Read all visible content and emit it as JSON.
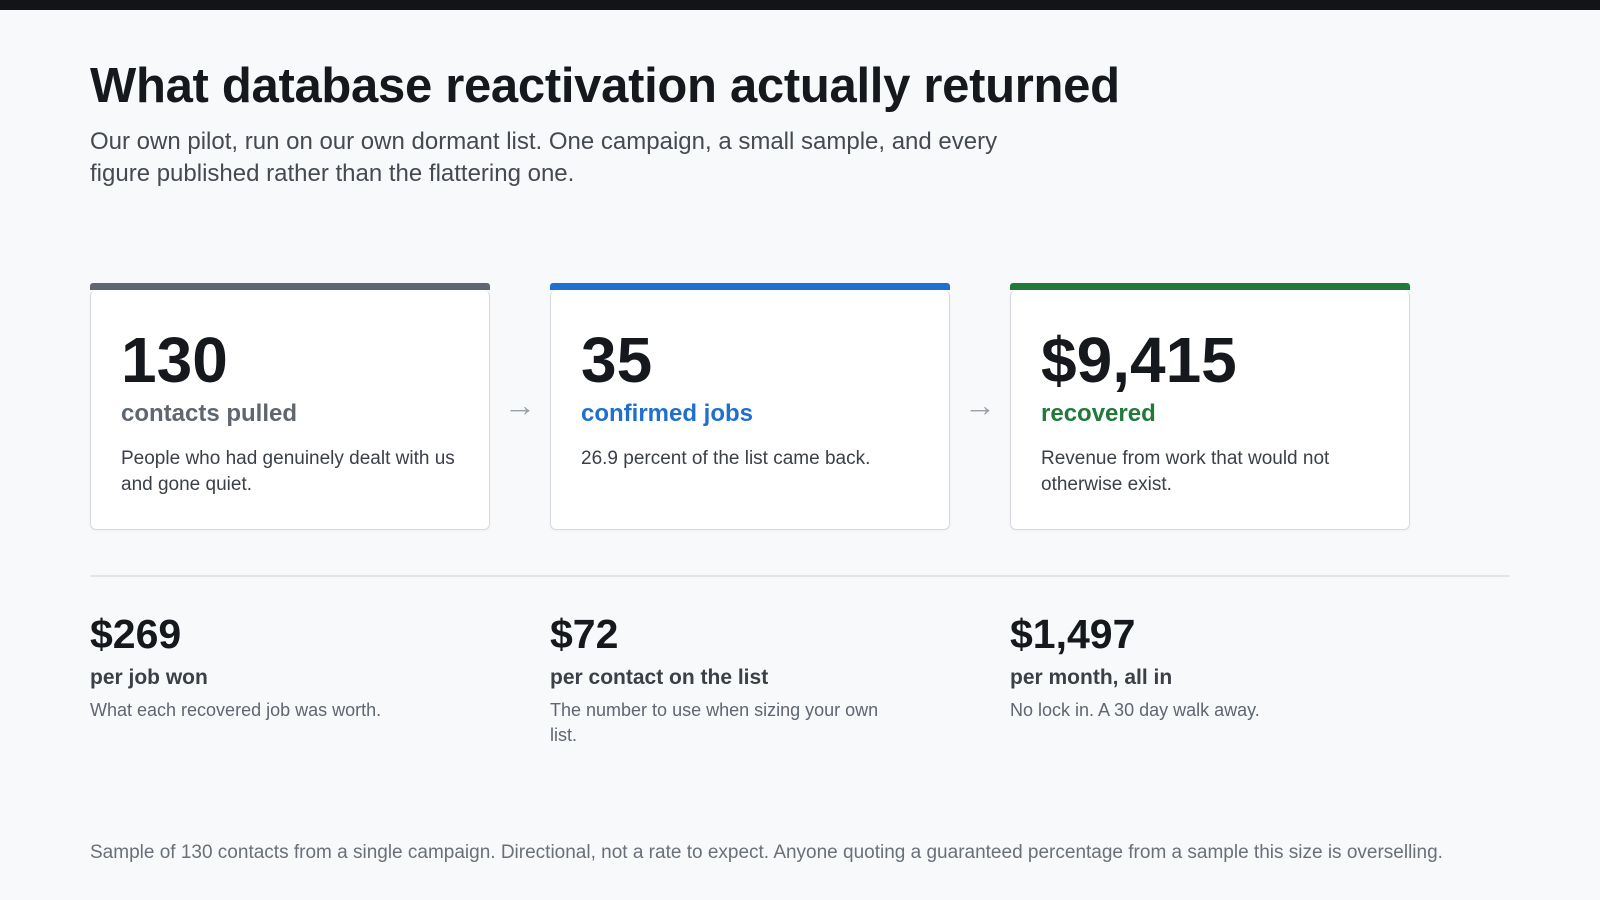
{
  "header": {
    "title": "What database reactivation actually returned",
    "subtitle": "Our own pilot, run on our own dormant list. One campaign, a small sample, and every figure published rather than the flattering one."
  },
  "funnel": [
    {
      "value": "130",
      "label": "contacts pulled",
      "description": "People who had genuinely dealt with us and gone quiet.",
      "accent": "#5f6670"
    },
    {
      "value": "35",
      "label": "confirmed jobs",
      "description": "26.9 percent of the list came back.",
      "accent": "#1f6fd1"
    },
    {
      "value": "$9,415",
      "label": "recovered",
      "description": "Revenue from work that would not otherwise exist.",
      "accent": "#227a3a"
    }
  ],
  "arrow_icon": "arrow-right-icon",
  "stats": [
    {
      "amount": "$269",
      "label": "per job won",
      "note": "What each recovered job was worth."
    },
    {
      "amount": "$72",
      "label": "per contact on the list",
      "note": "The number to use when sizing your own list."
    },
    {
      "amount": "$1,497",
      "label": "per month, all in",
      "note": "No lock in. A 30 day walk away."
    }
  ],
  "footer": "Sample of 130 contacts from a single campaign. Directional, not a rate to expect. Anyone quoting a guaranteed percentage from a sample this size is overselling."
}
